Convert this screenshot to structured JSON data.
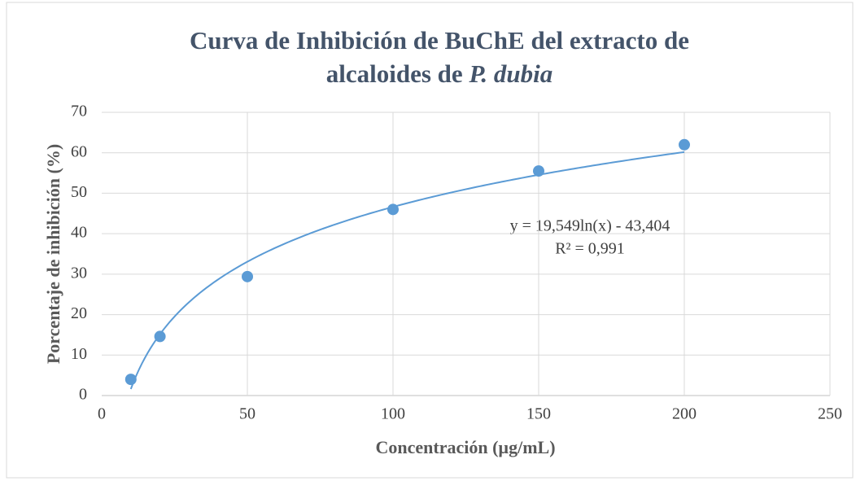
{
  "chart_data": {
    "type": "scatter",
    "title": {
      "line1": "Curva de Inhibición de BuChE del extracto de",
      "line2": "alcaloides de",
      "italic": "P. dubia"
    },
    "x_label": "Concentración (µg/mL)",
    "y_label": "Porcentaje de inhibición (%)",
    "series": [
      {
        "name": "BuChE",
        "color": "#5b9bd5",
        "x": [
          10,
          20,
          50,
          100,
          150,
          200
        ],
        "values": [
          4,
          14.6,
          29.4,
          46,
          55.5,
          62
        ]
      }
    ],
    "trendline": {
      "type": "log",
      "slope": 19.549,
      "intercept": -43.404,
      "color": "#5b9bd5",
      "equation": "y = 19,549ln(x) - 43,404",
      "r2": "R² = 0,991"
    },
    "xlim": [
      0,
      250
    ],
    "xticks": [
      0,
      50,
      100,
      150,
      200,
      250
    ],
    "ylim": [
      0,
      70
    ],
    "yticks": [
      0,
      10,
      20,
      30,
      40,
      50,
      60,
      70
    ],
    "grid": true
  }
}
